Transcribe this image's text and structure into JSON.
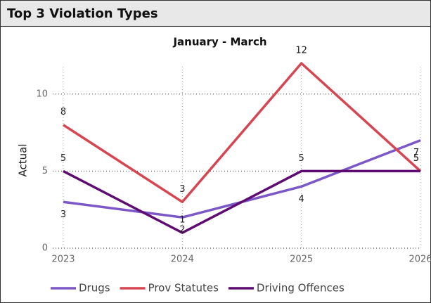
{
  "chart_data": {
    "type": "line",
    "title": "Top 3 Violation Types",
    "subtitle": "January - March",
    "y_label": "Actual",
    "x": [
      2023,
      2024,
      2025,
      2026
    ],
    "xlim": [
      2023,
      2026
    ],
    "xticks": [
      2023,
      2024,
      2025,
      2026
    ],
    "ylim": [
      0,
      12
    ],
    "yticks": [
      0,
      5,
      10
    ],
    "grid": true,
    "legend": "bottom",
    "series": [
      {
        "name": "Drugs",
        "color": "#7B57C8",
        "values": [
          3,
          2,
          4,
          7
        ]
      },
      {
        "name": "Prov Statutes",
        "color": "#D64550",
        "values": [
          8,
          3,
          12,
          5
        ]
      },
      {
        "name": "Driving Offences",
        "color": "#5E0B72",
        "values": [
          5,
          1,
          5,
          5
        ]
      }
    ]
  }
}
